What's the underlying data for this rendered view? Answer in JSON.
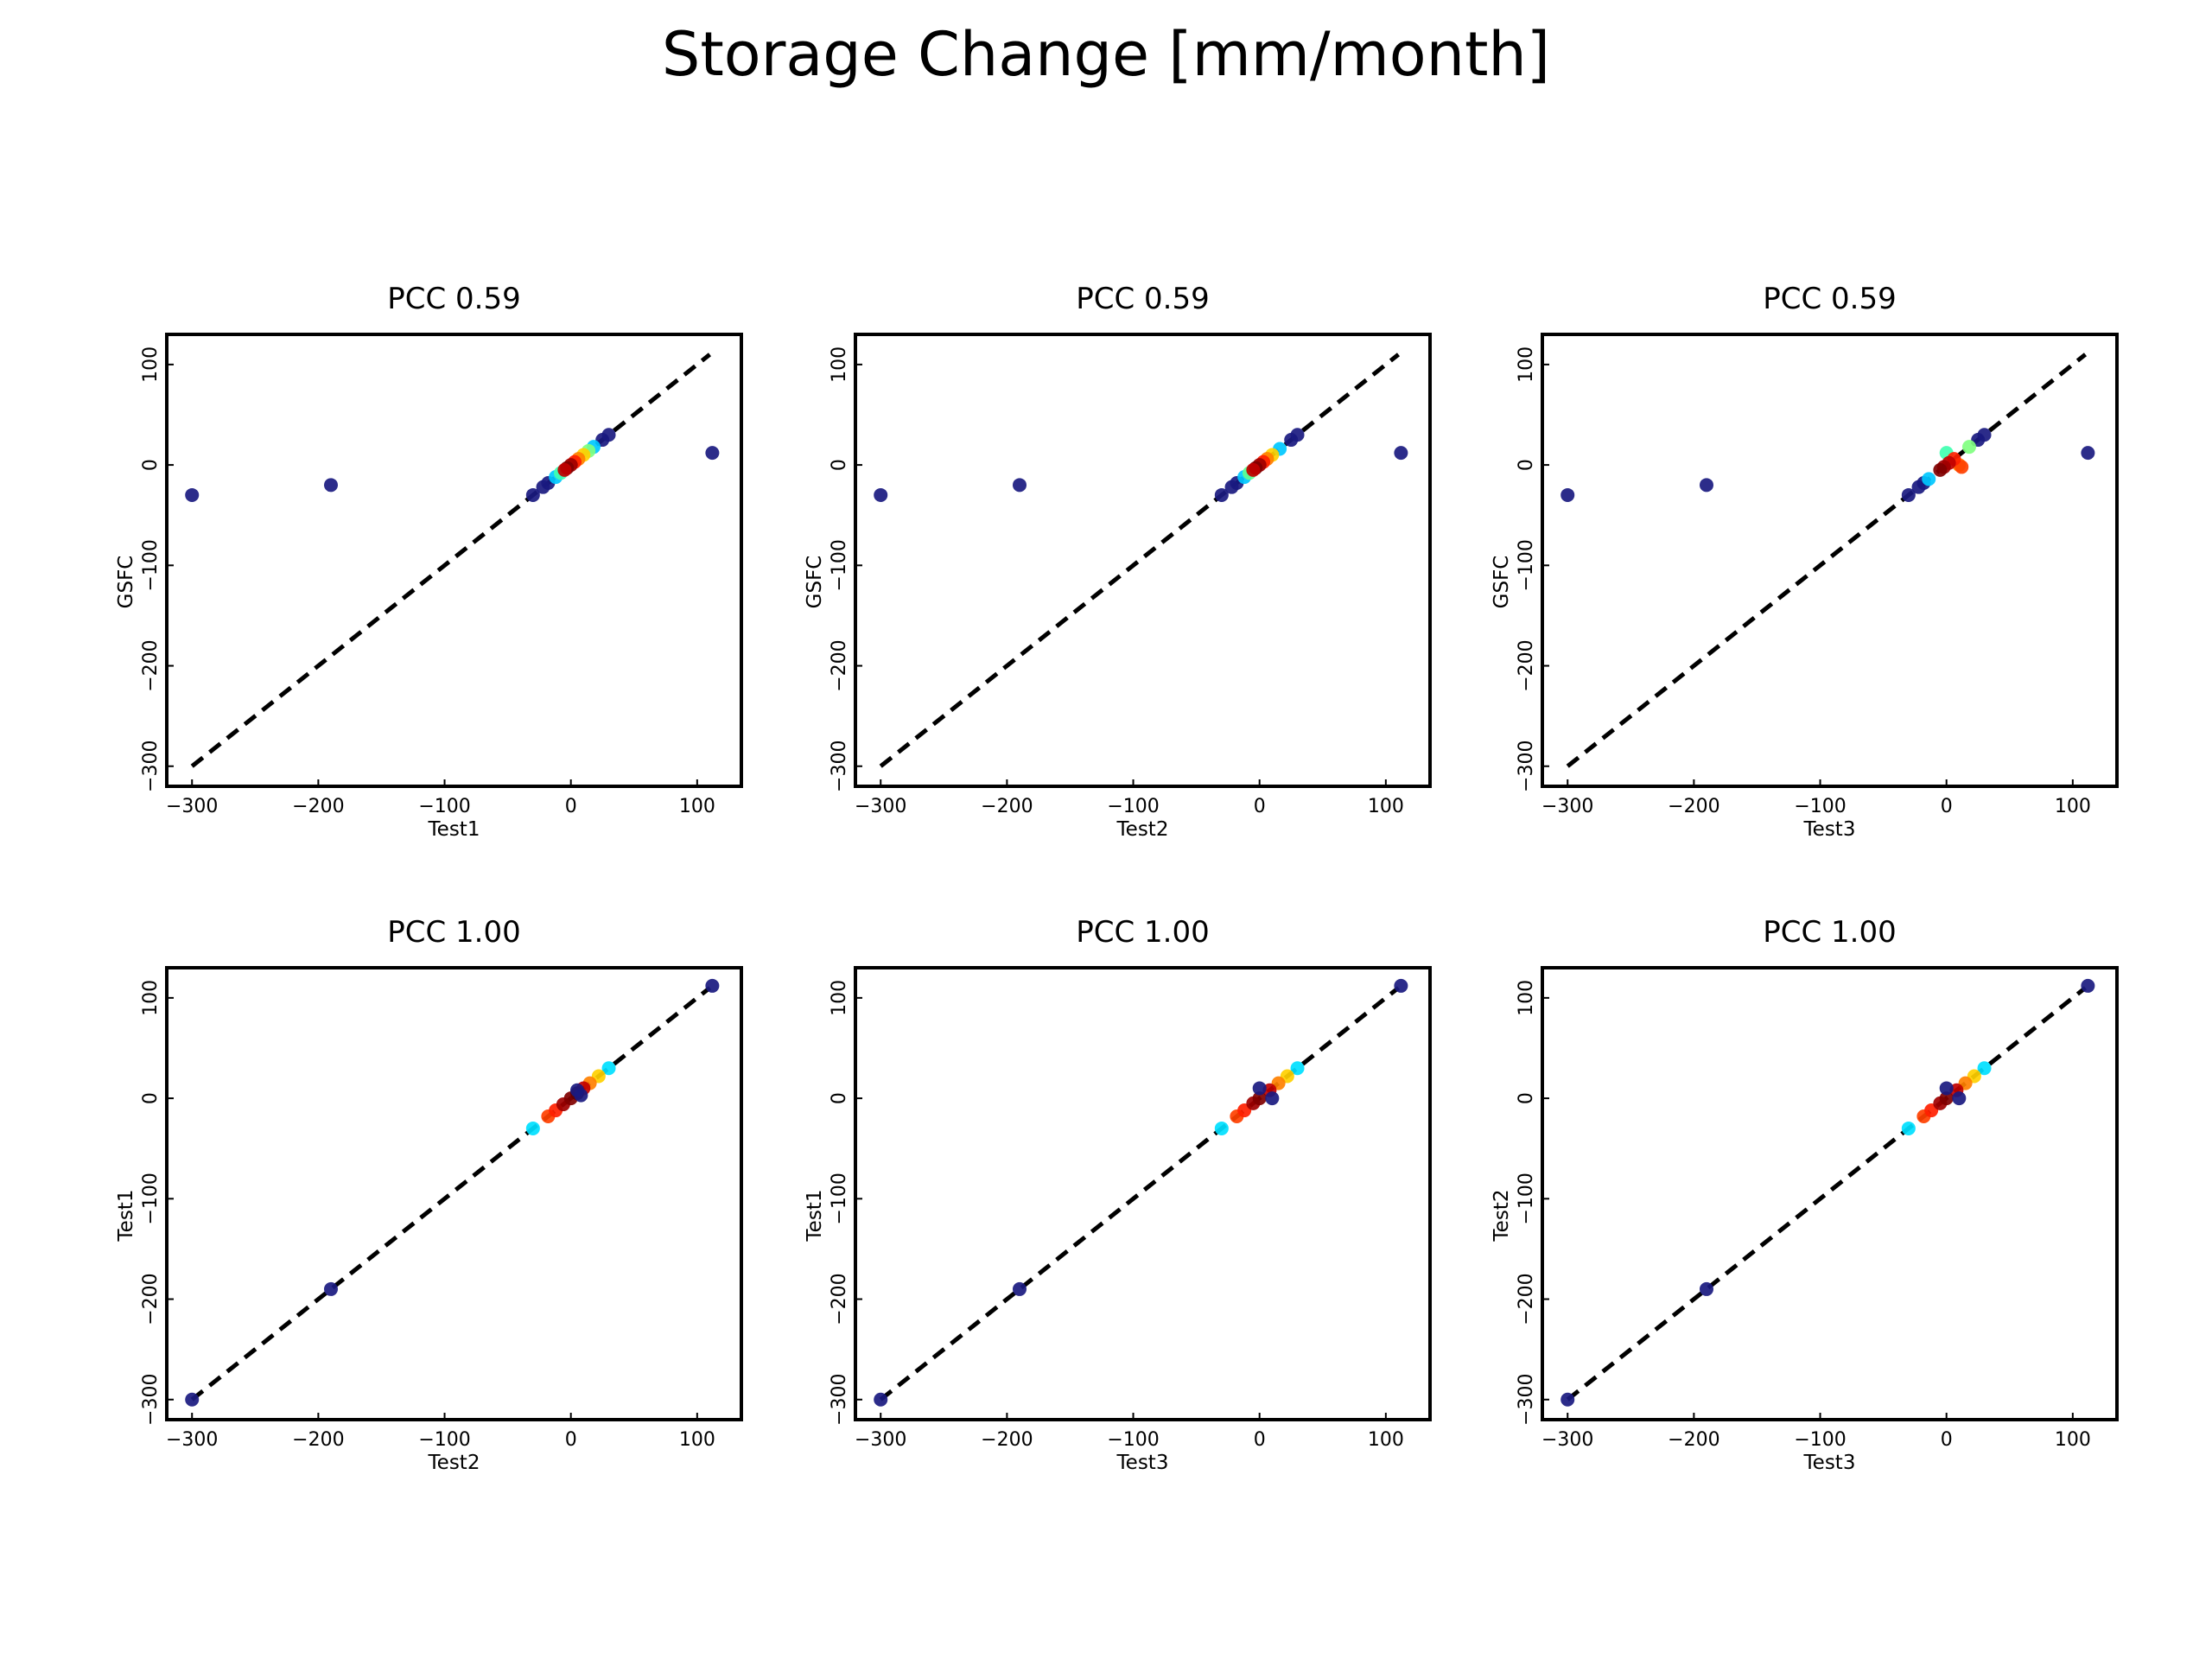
{
  "figure": {
    "title": "Storage Change [mm/month]"
  },
  "chart_data": [
    {
      "type": "scatter",
      "title": "PCC 0.59",
      "xlabel": "Test1",
      "ylabel": "GSFC",
      "xlim": [
        -320,
        135
      ],
      "ylim": [
        -320,
        130
      ],
      "xticks": [
        -300,
        -200,
        -100,
        0,
        100
      ],
      "yticks": [
        -300,
        -200,
        -100,
        0,
        100
      ],
      "reference_line": {
        "style": "dashed",
        "from": [
          -300,
          -300
        ],
        "to": [
          110,
          110
        ]
      },
      "points": [
        {
          "x": -300,
          "y": -30,
          "color": "#1a1a80"
        },
        {
          "x": -190,
          "y": -20,
          "color": "#1a1a80"
        },
        {
          "x": 112,
          "y": 12,
          "color": "#1a1a80"
        },
        {
          "x": -30,
          "y": -30,
          "color": "#1a1a80"
        },
        {
          "x": -22,
          "y": -22,
          "color": "#1a1a80"
        },
        {
          "x": -18,
          "y": -18,
          "color": "#1a1a80"
        },
        {
          "x": 25,
          "y": 25,
          "color": "#1a1a80"
        },
        {
          "x": 30,
          "y": 30,
          "color": "#1a1a80"
        },
        {
          "x": -12,
          "y": -12,
          "color": "#00c8ff"
        },
        {
          "x": -8,
          "y": -8,
          "color": "#40ffb0"
        },
        {
          "x": 18,
          "y": 18,
          "color": "#00c8ff"
        },
        {
          "x": 14,
          "y": 14,
          "color": "#80ff80"
        },
        {
          "x": 10,
          "y": 10,
          "color": "#ffd000"
        },
        {
          "x": 6,
          "y": 6,
          "color": "#ff8000"
        },
        {
          "x": 3,
          "y": 3,
          "color": "#ff2000"
        },
        {
          "x": 0,
          "y": 0,
          "color": "#a00000"
        },
        {
          "x": -3,
          "y": -3,
          "color": "#800000"
        },
        {
          "x": -5,
          "y": -5,
          "color": "#c00000"
        }
      ]
    },
    {
      "type": "scatter",
      "title": "PCC 0.59",
      "xlabel": "Test2",
      "ylabel": "GSFC",
      "xlim": [
        -320,
        135
      ],
      "ylim": [
        -320,
        130
      ],
      "xticks": [
        -300,
        -200,
        -100,
        0,
        100
      ],
      "yticks": [
        -300,
        -200,
        -100,
        0,
        100
      ],
      "reference_line": {
        "style": "dashed",
        "from": [
          -300,
          -300
        ],
        "to": [
          110,
          110
        ]
      },
      "points": [
        {
          "x": -300,
          "y": -30,
          "color": "#1a1a80"
        },
        {
          "x": -190,
          "y": -20,
          "color": "#1a1a80"
        },
        {
          "x": 112,
          "y": 12,
          "color": "#1a1a80"
        },
        {
          "x": -30,
          "y": -30,
          "color": "#1a1a80"
        },
        {
          "x": -22,
          "y": -22,
          "color": "#1a1a80"
        },
        {
          "x": -18,
          "y": -18,
          "color": "#1a1a80"
        },
        {
          "x": 25,
          "y": 25,
          "color": "#1a1a80"
        },
        {
          "x": 30,
          "y": 30,
          "color": "#1a1a80"
        },
        {
          "x": -12,
          "y": -12,
          "color": "#00c8ff"
        },
        {
          "x": 16,
          "y": 16,
          "color": "#00c8ff"
        },
        {
          "x": -8,
          "y": -8,
          "color": "#60ff90"
        },
        {
          "x": 10,
          "y": 10,
          "color": "#ffd000"
        },
        {
          "x": 6,
          "y": 6,
          "color": "#ff8000"
        },
        {
          "x": 3,
          "y": 3,
          "color": "#ff2000"
        },
        {
          "x": 0,
          "y": 0,
          "color": "#a00000"
        },
        {
          "x": -3,
          "y": -3,
          "color": "#800000"
        },
        {
          "x": -5,
          "y": -5,
          "color": "#c00000"
        }
      ]
    },
    {
      "type": "scatter",
      "title": "PCC 0.59",
      "xlabel": "Test3",
      "ylabel": "GSFC",
      "xlim": [
        -320,
        135
      ],
      "ylim": [
        -320,
        130
      ],
      "xticks": [
        -300,
        -200,
        -100,
        0,
        100
      ],
      "yticks": [
        -300,
        -200,
        -100,
        0,
        100
      ],
      "reference_line": {
        "style": "dashed",
        "from": [
          -300,
          -300
        ],
        "to": [
          110,
          110
        ]
      },
      "points": [
        {
          "x": -300,
          "y": -30,
          "color": "#1a1a80"
        },
        {
          "x": -190,
          "y": -20,
          "color": "#1a1a80"
        },
        {
          "x": 112,
          "y": 12,
          "color": "#1a1a80"
        },
        {
          "x": -30,
          "y": -30,
          "color": "#1a1a80"
        },
        {
          "x": -22,
          "y": -22,
          "color": "#1a1a80"
        },
        {
          "x": -18,
          "y": -18,
          "color": "#1a1a80"
        },
        {
          "x": 25,
          "y": 25,
          "color": "#1a1a80"
        },
        {
          "x": 30,
          "y": 30,
          "color": "#1a1a80"
        },
        {
          "x": -14,
          "y": -14,
          "color": "#00c8ff"
        },
        {
          "x": 0,
          "y": 12,
          "color": "#40ffb0"
        },
        {
          "x": 18,
          "y": 18,
          "color": "#80ff80"
        },
        {
          "x": 10,
          "y": 0,
          "color": "#ff8000"
        },
        {
          "x": 12,
          "y": -2,
          "color": "#ff4000"
        },
        {
          "x": 6,
          "y": 6,
          "color": "#ff2000"
        },
        {
          "x": 2,
          "y": 2,
          "color": "#c00000"
        },
        {
          "x": -2,
          "y": -2,
          "color": "#a00000"
        },
        {
          "x": -5,
          "y": -5,
          "color": "#800000"
        }
      ]
    },
    {
      "type": "scatter",
      "title": "PCC 1.00",
      "xlabel": "Test2",
      "ylabel": "Test1",
      "xlim": [
        -320,
        135
      ],
      "ylim": [
        -320,
        130
      ],
      "xticks": [
        -300,
        -200,
        -100,
        0,
        100
      ],
      "yticks": [
        -300,
        -200,
        -100,
        0,
        100
      ],
      "reference_line": {
        "style": "dashed",
        "from": [
          -300,
          -300
        ],
        "to": [
          110,
          110
        ]
      },
      "points": [
        {
          "x": -300,
          "y": -300,
          "color": "#1a1a80"
        },
        {
          "x": -190,
          "y": -190,
          "color": "#1a1a80"
        },
        {
          "x": 112,
          "y": 112,
          "color": "#1a1a80"
        },
        {
          "x": -30,
          "y": -30,
          "color": "#00e0ff"
        },
        {
          "x": 30,
          "y": 30,
          "color": "#00e0ff"
        },
        {
          "x": 22,
          "y": 22,
          "color": "#ffd000"
        },
        {
          "x": -18,
          "y": -18,
          "color": "#ff4000"
        },
        {
          "x": -12,
          "y": -12,
          "color": "#ff2000"
        },
        {
          "x": 15,
          "y": 15,
          "color": "#ff8000"
        },
        {
          "x": 10,
          "y": 10,
          "color": "#c00000"
        },
        {
          "x": -6,
          "y": -6,
          "color": "#a00000"
        },
        {
          "x": 0,
          "y": 0,
          "color": "#800000"
        },
        {
          "x": 5,
          "y": 5,
          "color": "#600000"
        },
        {
          "x": 5,
          "y": 8,
          "color": "#1a1a80"
        },
        {
          "x": 8,
          "y": 3,
          "color": "#1a1a80"
        }
      ]
    },
    {
      "type": "scatter",
      "title": "PCC 1.00",
      "xlabel": "Test3",
      "ylabel": "Test1",
      "xlim": [
        -320,
        135
      ],
      "ylim": [
        -320,
        130
      ],
      "xticks": [
        -300,
        -200,
        -100,
        0,
        100
      ],
      "yticks": [
        -300,
        -200,
        -100,
        0,
        100
      ],
      "reference_line": {
        "style": "dashed",
        "from": [
          -300,
          -300
        ],
        "to": [
          110,
          110
        ]
      },
      "points": [
        {
          "x": -300,
          "y": -300,
          "color": "#1a1a80"
        },
        {
          "x": -190,
          "y": -190,
          "color": "#1a1a80"
        },
        {
          "x": 112,
          "y": 112,
          "color": "#1a1a80"
        },
        {
          "x": -30,
          "y": -30,
          "color": "#00e0ff"
        },
        {
          "x": 30,
          "y": 30,
          "color": "#00e0ff"
        },
        {
          "x": 22,
          "y": 22,
          "color": "#ffd000"
        },
        {
          "x": -18,
          "y": -18,
          "color": "#ff4000"
        },
        {
          "x": -12,
          "y": -12,
          "color": "#ff2000"
        },
        {
          "x": 15,
          "y": 15,
          "color": "#ff8000"
        },
        {
          "x": 8,
          "y": 8,
          "color": "#c00000"
        },
        {
          "x": -5,
          "y": -5,
          "color": "#a00000"
        },
        {
          "x": 0,
          "y": 0,
          "color": "#800000"
        },
        {
          "x": 0,
          "y": 10,
          "color": "#1a1a80"
        },
        {
          "x": 10,
          "y": 0,
          "color": "#1a1a80"
        }
      ]
    },
    {
      "type": "scatter",
      "title": "PCC 1.00",
      "xlabel": "Test3",
      "ylabel": "Test2",
      "xlim": [
        -320,
        135
      ],
      "ylim": [
        -320,
        130
      ],
      "xticks": [
        -300,
        -200,
        -100,
        0,
        100
      ],
      "yticks": [
        -300,
        -200,
        -100,
        0,
        100
      ],
      "reference_line": {
        "style": "dashed",
        "from": [
          -300,
          -300
        ],
        "to": [
          110,
          110
        ]
      },
      "points": [
        {
          "x": -300,
          "y": -300,
          "color": "#1a1a80"
        },
        {
          "x": -190,
          "y": -190,
          "color": "#1a1a80"
        },
        {
          "x": 112,
          "y": 112,
          "color": "#1a1a80"
        },
        {
          "x": -30,
          "y": -30,
          "color": "#00e0ff"
        },
        {
          "x": 30,
          "y": 30,
          "color": "#00e0ff"
        },
        {
          "x": 22,
          "y": 22,
          "color": "#ffd000"
        },
        {
          "x": -18,
          "y": -18,
          "color": "#ff4000"
        },
        {
          "x": -12,
          "y": -12,
          "color": "#ff2000"
        },
        {
          "x": 15,
          "y": 15,
          "color": "#ff8000"
        },
        {
          "x": 8,
          "y": 8,
          "color": "#c00000"
        },
        {
          "x": -5,
          "y": -5,
          "color": "#a00000"
        },
        {
          "x": 0,
          "y": 0,
          "color": "#800000"
        },
        {
          "x": 0,
          "y": 10,
          "color": "#1a1a80"
        },
        {
          "x": 10,
          "y": 0,
          "color": "#1a1a80"
        }
      ]
    }
  ]
}
